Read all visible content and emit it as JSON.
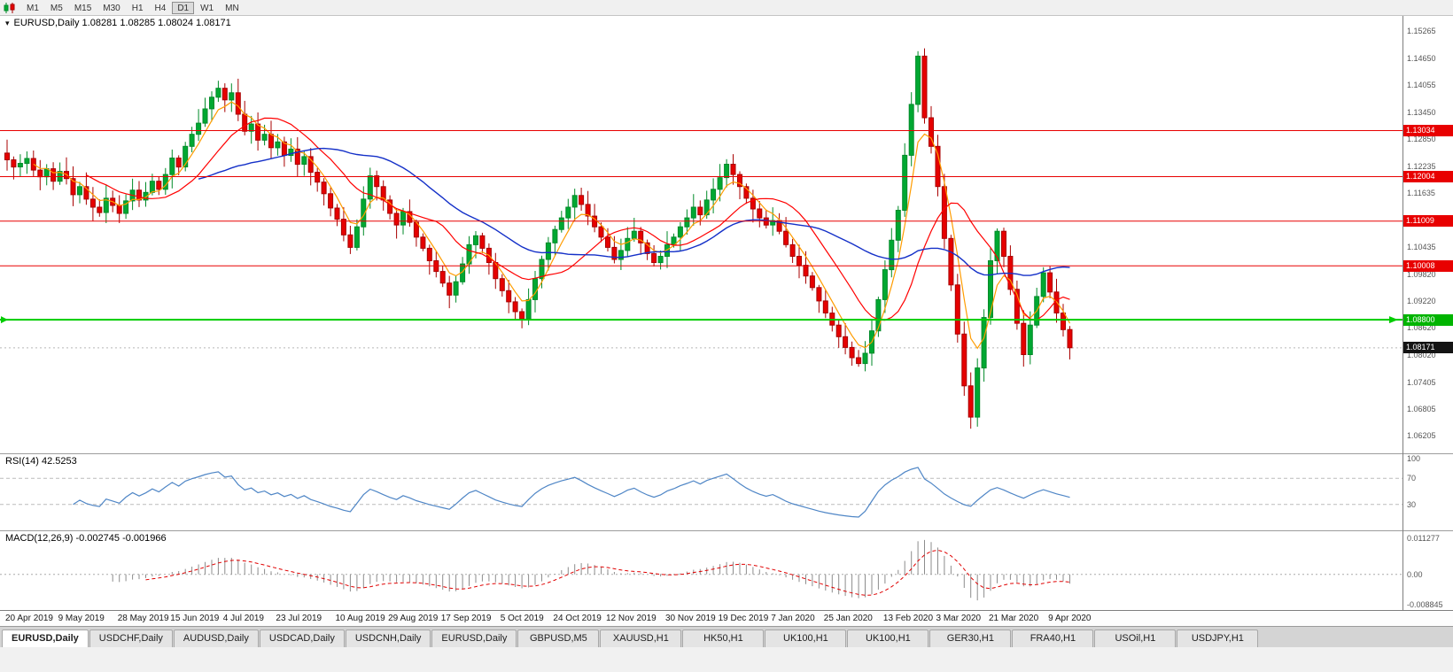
{
  "toolbar": {
    "timeframes": [
      {
        "label": "M1",
        "active": false
      },
      {
        "label": "M5",
        "active": false
      },
      {
        "label": "M15",
        "active": false
      },
      {
        "label": "M30",
        "active": false
      },
      {
        "label": "H1",
        "active": false
      },
      {
        "label": "H4",
        "active": false
      },
      {
        "label": "D1",
        "active": true
      },
      {
        "label": "W1",
        "active": false
      },
      {
        "label": "MN",
        "active": false
      }
    ]
  },
  "main_chart": {
    "dropdown_icon": "▾",
    "header": "EURUSD,Daily 1.08281 1.08285 1.08024 1.08171",
    "axis_labels": [
      "1.15265",
      "1.14650",
      "1.14055",
      "1.13450",
      "1.12850",
      "1.12235",
      "1.11635",
      "1.10435",
      "1.09820",
      "1.09220",
      "1.08620",
      "1.08020",
      "1.07405",
      "1.06805",
      "1.06205"
    ],
    "badges": [
      {
        "text": "1.13034",
        "bg": "#e80000",
        "fg": "#ffffff"
      },
      {
        "text": "1.12004",
        "bg": "#e80000",
        "fg": "#ffffff"
      },
      {
        "text": "1.11009",
        "bg": "#e80000",
        "fg": "#ffffff"
      },
      {
        "text": "1.10008",
        "bg": "#e80000",
        "fg": "#ffffff"
      },
      {
        "text": "1.08800",
        "bg": "#00b400",
        "fg": "#ffffff"
      },
      {
        "text": "1.08171",
        "bg": "#141414",
        "fg": "#ffffff"
      }
    ]
  },
  "rsi": {
    "header": "RSI(14) 42.5253",
    "axis_labels": [
      "100",
      "70",
      "30"
    ],
    "level_lines": [
      70,
      30
    ]
  },
  "macd": {
    "header": "MACD(12,26,9) -0.002745 -0.001966",
    "axis_labels": [
      "0.011277",
      "0.00",
      "-0.008845"
    ]
  },
  "tabs": [
    {
      "label": "EURUSD,Daily",
      "active": true
    },
    {
      "label": "USDCHF,Daily",
      "active": false
    },
    {
      "label": "AUDUSD,Daily",
      "active": false
    },
    {
      "label": "USDCAD,Daily",
      "active": false
    },
    {
      "label": "USDCNH,Daily",
      "active": false
    },
    {
      "label": "EURUSD,Daily",
      "active": false
    },
    {
      "label": "GBPUSD,M5",
      "active": false
    },
    {
      "label": "XAUUSD,H1",
      "active": false
    },
    {
      "label": "HK50,H1",
      "active": false
    },
    {
      "label": "UK100,H1",
      "active": false
    },
    {
      "label": "UK100,H1",
      "active": false
    },
    {
      "label": "GER30,H1",
      "active": false
    },
    {
      "label": "FRA40,H1",
      "active": false
    },
    {
      "label": "USOil,H1",
      "active": false
    },
    {
      "label": "USDJPY,H1",
      "active": false
    }
  ],
  "chart_data": {
    "type": "candlestick",
    "symbol": "EURUSD",
    "timeframe": "Daily",
    "title": "EURUSD,Daily",
    "current_bar": {
      "open": 1.08281,
      "high": 1.08285,
      "low": 1.08024,
      "close": 1.08171
    },
    "last_price": 1.08171,
    "price_range": [
      1.0581,
      1.156
    ],
    "y_axis_ticks": [
      1.15265,
      1.1465,
      1.14055,
      1.1345,
      1.1285,
      1.12235,
      1.11635,
      1.10435,
      1.0982,
      1.0922,
      1.0862,
      1.0802,
      1.07405,
      1.06805,
      1.06205
    ],
    "horizontal_lines": [
      {
        "price": 1.13034,
        "color": "#e80000",
        "width": 1
      },
      {
        "price": 1.12004,
        "color": "#e80000",
        "width": 1
      },
      {
        "price": 1.11009,
        "color": "#e80000",
        "width": 1
      },
      {
        "price": 1.10008,
        "color": "#e80000",
        "width": 1
      },
      {
        "price": 1.088,
        "color": "#00cc00",
        "width": 2
      }
    ],
    "closes": [
      1.1238,
      1.1222,
      1.123,
      1.1241,
      1.1215,
      1.12,
      1.1218,
      1.119,
      1.1212,
      1.1196,
      1.116,
      1.1178,
      1.115,
      1.1132,
      1.112,
      1.1152,
      1.1136,
      1.1118,
      1.1146,
      1.117,
      1.1148,
      1.1165,
      1.119,
      1.1172,
      1.1205,
      1.1242,
      1.1222,
      1.1268,
      1.1295,
      1.132,
      1.1352,
      1.1378,
      1.1398,
      1.1372,
      1.1388,
      1.134,
      1.1302,
      1.1318,
      1.1282,
      1.1295,
      1.1265,
      1.1278,
      1.1248,
      1.1262,
      1.1228,
      1.1245,
      1.121,
      1.1188,
      1.1162,
      1.113,
      1.1105,
      1.107,
      1.1042,
      1.1088,
      1.115,
      1.1202,
      1.1178,
      1.1148,
      1.1118,
      1.1092,
      1.1122,
      1.1098,
      1.1065,
      1.104,
      1.1012,
      1.0988,
      1.0962,
      1.0935,
      1.0965,
      1.1005,
      1.1048,
      1.1068,
      1.104,
      1.1008,
      1.0972,
      1.0945,
      1.092,
      1.0898,
      1.0882,
      1.0925,
      1.0972,
      1.1015,
      1.1052,
      1.1082,
      1.1108,
      1.1132,
      1.1158,
      1.1138,
      1.1112,
      1.1088,
      1.1065,
      1.1042,
      1.1015,
      1.1035,
      1.1062,
      1.1078,
      1.1052,
      1.1028,
      1.1008,
      1.1022,
      1.1048,
      1.1065,
      1.1088,
      1.1108,
      1.1132,
      1.1115,
      1.1148,
      1.1172,
      1.1198,
      1.1228,
      1.1205,
      1.1178,
      1.1152,
      1.1128,
      1.1108,
      1.1092,
      1.1102,
      1.1078,
      1.1048,
      1.1022,
      1.1002,
      1.0978,
      1.0952,
      1.0922,
      1.0895,
      1.0868,
      1.0842,
      1.0818,
      1.0795,
      1.0782,
      1.0805,
      1.0855,
      1.0925,
      1.0992,
      1.1058,
      1.1125,
      1.1248,
      1.1362,
      1.147,
      1.1332,
      1.1268,
      1.1178,
      1.1062,
      1.0958,
      1.0848,
      1.0732,
      1.0662,
      1.0772,
      1.0885,
      1.1012,
      1.1078,
      1.1022,
      1.0948,
      1.0872,
      1.0802,
      1.0868,
      1.0932,
      1.0985,
      1.0942,
      1.0895,
      1.0858,
      1.08171
    ],
    "x_axis_dates": [
      "20 Apr 2019",
      "9 May 2019",
      "28 May 2019",
      "15 Jun 2019",
      "4 Jul 2019",
      "23 Jul 2019",
      "10 Aug 2019",
      "29 Aug 2019",
      "17 Sep 2019",
      "5 Oct 2019",
      "24 Oct 2019",
      "12 Nov 2019",
      "30 Nov 2019",
      "19 Dec 2019",
      "7 Jan 2020",
      "25 Jan 2020",
      "13 Feb 2020",
      "3 Mar 2020",
      "21 Mar 2020",
      "9 Apr 2020"
    ],
    "moving_averages": [
      {
        "name": "fast-ma",
        "color": "#ff9c00"
      },
      {
        "name": "medium-ma",
        "color": "#ff0000"
      },
      {
        "name": "slow-ma",
        "color": "#1430c8"
      }
    ],
    "indicators": {
      "rsi": {
        "label": "RSI(14)",
        "current": 42.5253,
        "range": [
          0,
          100
        ],
        "levels": [
          70,
          30
        ]
      },
      "macd": {
        "label": "MACD(12,26,9)",
        "current_macd": -0.002745,
        "current_signal": -0.001966,
        "axis_top": 0.011277,
        "axis_bottom": -0.008845
      }
    },
    "candle_colors": {
      "up": "#00a832",
      "down": "#e60000"
    }
  }
}
